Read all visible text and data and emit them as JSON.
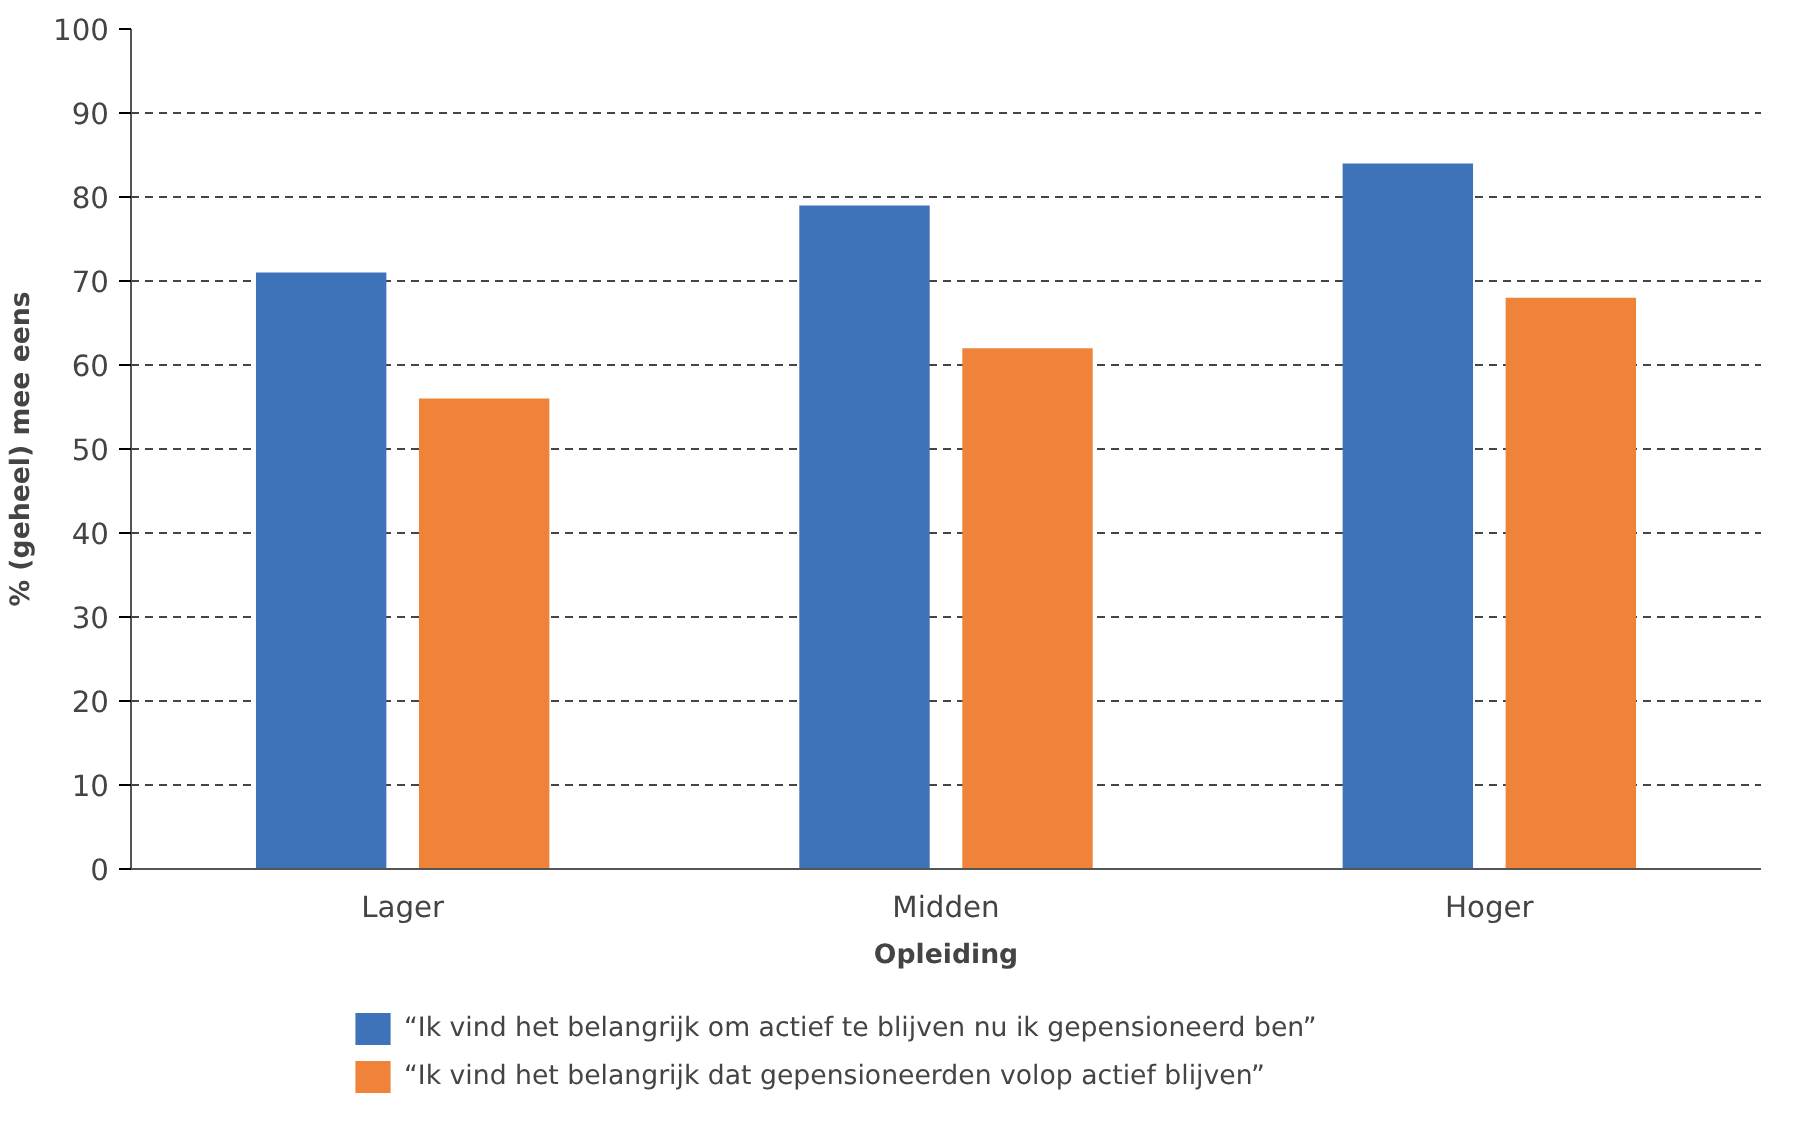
{
  "chart_data": {
    "type": "bar",
    "xlabel": "Opleiding",
    "ylabel": "% (geheel) mee eens",
    "categories": [
      "Lager",
      "Midden",
      "Hoger"
    ],
    "series": [
      {
        "name": "“Ik vind het belangrijk om actief te blijven nu ik gepensioneerd ben”",
        "color": "#3f73b9",
        "values": [
          71,
          79,
          84
        ]
      },
      {
        "name": "“Ik vind het belangrijk dat gepensioneerden volop actief blijven”",
        "color": "#f0833a",
        "values": [
          56,
          62,
          68
        ]
      }
    ],
    "ylim": [
      0,
      100
    ],
    "yticks": [
      0,
      10,
      20,
      30,
      40,
      50,
      60,
      70,
      80,
      90,
      100
    ],
    "grid": "y",
    "legend": "bottom"
  }
}
